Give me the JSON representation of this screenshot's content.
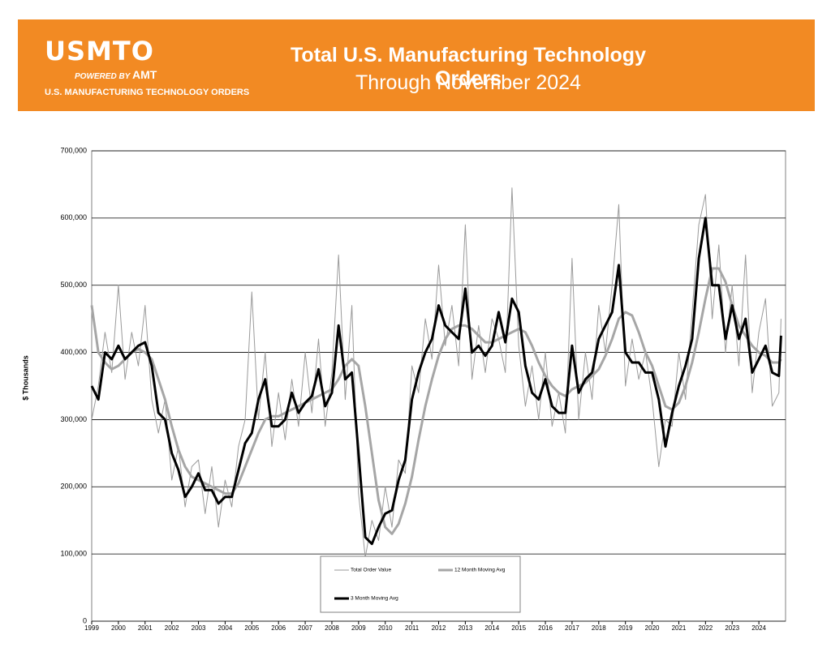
{
  "header": {
    "logo": "USMTO",
    "powered_by": "POWERED BY",
    "powered_brand": "AMT",
    "tagline": "U.S. MANUFACTURING TECHNOLOGY ORDERS",
    "title": "Total U.S. Manufacturing Technology Orders",
    "subtitle": "Through November 2024"
  },
  "chart_data": {
    "type": "line",
    "y_label": "$ Thousands",
    "grid": true,
    "legend": "bottom",
    "xlim": [
      1999,
      2025
    ],
    "ylim": [
      0,
      700000
    ],
    "xticks": [
      1999,
      2000,
      2001,
      2002,
      2003,
      2004,
      2005,
      2006,
      2007,
      2008,
      2009,
      2010,
      2011,
      2012,
      2013,
      2014,
      2015,
      2016,
      2017,
      2018,
      2019,
      2020,
      2021,
      2022,
      2023,
      2024
    ],
    "yticks": [
      0,
      {
        "value": 100000,
        "label": "100,000"
      },
      {
        "value": 200000,
        "label": "200,000"
      },
      {
        "value": 300000,
        "label": "300,000"
      },
      {
        "value": 400000,
        "label": "400,000"
      },
      {
        "value": 500000,
        "label": "500,000"
      },
      {
        "value": 600000,
        "label": "600,000"
      },
      {
        "value": 700000,
        "label": "700,000"
      }
    ],
    "x": [
      1999,
      1999.25,
      1999.5,
      1999.75,
      2000,
      2000.25,
      2000.5,
      2000.75,
      2001,
      2001.25,
      2001.5,
      2001.75,
      2002,
      2002.25,
      2002.5,
      2002.75,
      2003,
      2003.25,
      2003.5,
      2003.75,
      2004,
      2004.25,
      2004.5,
      2004.75,
      2005,
      2005.25,
      2005.5,
      2005.75,
      2006,
      2006.25,
      2006.5,
      2006.75,
      2007,
      2007.25,
      2007.5,
      2007.75,
      2008,
      2008.25,
      2008.5,
      2008.75,
      2009,
      2009.25,
      2009.5,
      2009.75,
      2010,
      2010.25,
      2010.5,
      2010.75,
      2011,
      2011.25,
      2011.5,
      2011.75,
      2012,
      2012.25,
      2012.5,
      2012.75,
      2013,
      2013.25,
      2013.5,
      2013.75,
      2014,
      2014.25,
      2014.5,
      2014.75,
      2015,
      2015.25,
      2015.5,
      2015.75,
      2016,
      2016.25,
      2016.5,
      2016.75,
      2017,
      2017.25,
      2017.5,
      2017.75,
      2018,
      2018.25,
      2018.5,
      2018.75,
      2019,
      2019.25,
      2019.5,
      2019.75,
      2020,
      2020.25,
      2020.5,
      2020.75,
      2021,
      2021.25,
      2021.5,
      2021.75,
      2022,
      2022.25,
      2022.5,
      2022.75,
      2023,
      2023.25,
      2023.5,
      2023.75,
      2024,
      2024.25,
      2024.5,
      2024.75,
      2024.83
    ],
    "series": [
      {
        "name": "Total Order Value",
        "color": "#9a9a9a",
        "width": 1,
        "values": [
          300000,
          350000,
          430000,
          370000,
          500000,
          360000,
          430000,
          380000,
          470000,
          330000,
          280000,
          330000,
          210000,
          260000,
          170000,
          230000,
          240000,
          160000,
          230000,
          140000,
          210000,
          170000,
          260000,
          300000,
          490000,
          300000,
          400000,
          260000,
          340000,
          270000,
          360000,
          290000,
          400000,
          310000,
          420000,
          290000,
          370000,
          545000,
          330000,
          470000,
          190000,
          95000,
          150000,
          120000,
          200000,
          140000,
          240000,
          220000,
          380000,
          340000,
          450000,
          390000,
          530000,
          410000,
          470000,
          380000,
          590000,
          360000,
          440000,
          370000,
          450000,
          420000,
          370000,
          645000,
          410000,
          320000,
          380000,
          300000,
          400000,
          290000,
          340000,
          280000,
          540000,
          300000,
          400000,
          330000,
          470000,
          400000,
          500000,
          620000,
          350000,
          420000,
          360000,
          400000,
          330000,
          230000,
          300000,
          290000,
          400000,
          330000,
          460000,
          590000,
          635000,
          450000,
          560000,
          400000,
          500000,
          380000,
          545000,
          340000,
          430000,
          480000,
          320000,
          340000,
          450000
        ]
      },
      {
        "name": "12 Month Moving Avg",
        "color": "#a6a6a6",
        "width": 3,
        "values": [
          470000,
          400000,
          385000,
          375000,
          380000,
          390000,
          400000,
          405000,
          400000,
          390000,
          360000,
          330000,
          290000,
          255000,
          230000,
          215000,
          210000,
          205000,
          200000,
          195000,
          190000,
          190000,
          205000,
          230000,
          255000,
          280000,
          300000,
          305000,
          305000,
          310000,
          315000,
          320000,
          325000,
          330000,
          335000,
          340000,
          345000,
          360000,
          380000,
          390000,
          380000,
          320000,
          250000,
          180000,
          140000,
          130000,
          145000,
          175000,
          215000,
          270000,
          320000,
          360000,
          395000,
          420000,
          435000,
          440000,
          440000,
          435000,
          425000,
          415000,
          415000,
          420000,
          425000,
          430000,
          435000,
          430000,
          410000,
          385000,
          365000,
          350000,
          340000,
          335000,
          345000,
          350000,
          355000,
          365000,
          375000,
          395000,
          420000,
          450000,
          460000,
          455000,
          430000,
          400000,
          380000,
          350000,
          320000,
          315000,
          325000,
          350000,
          385000,
          430000,
          480000,
          525000,
          525000,
          505000,
          470000,
          440000,
          425000,
          410000,
          400000,
          395000,
          385000,
          385000,
          390000
        ]
      },
      {
        "name": "3 Month Moving Avg",
        "color": "#000000",
        "width": 3,
        "values": [
          350000,
          330000,
          400000,
          390000,
          410000,
          390000,
          400000,
          410000,
          415000,
          380000,
          310000,
          300000,
          250000,
          225000,
          185000,
          200000,
          220000,
          195000,
          195000,
          175000,
          185000,
          185000,
          225000,
          265000,
          280000,
          330000,
          360000,
          290000,
          290000,
          300000,
          340000,
          310000,
          325000,
          335000,
          375000,
          320000,
          340000,
          440000,
          360000,
          370000,
          250000,
          125000,
          115000,
          140000,
          160000,
          165000,
          210000,
          240000,
          330000,
          370000,
          400000,
          420000,
          470000,
          440000,
          430000,
          420000,
          495000,
          400000,
          410000,
          395000,
          410000,
          460000,
          415000,
          480000,
          460000,
          380000,
          340000,
          330000,
          360000,
          320000,
          310000,
          310000,
          410000,
          340000,
          360000,
          370000,
          420000,
          440000,
          460000,
          530000,
          400000,
          385000,
          385000,
          370000,
          370000,
          330000,
          260000,
          310000,
          350000,
          380000,
          420000,
          540000,
          600000,
          500000,
          500000,
          420000,
          470000,
          420000,
          450000,
          370000,
          390000,
          410000,
          370000,
          365000,
          425000
        ]
      }
    ]
  }
}
